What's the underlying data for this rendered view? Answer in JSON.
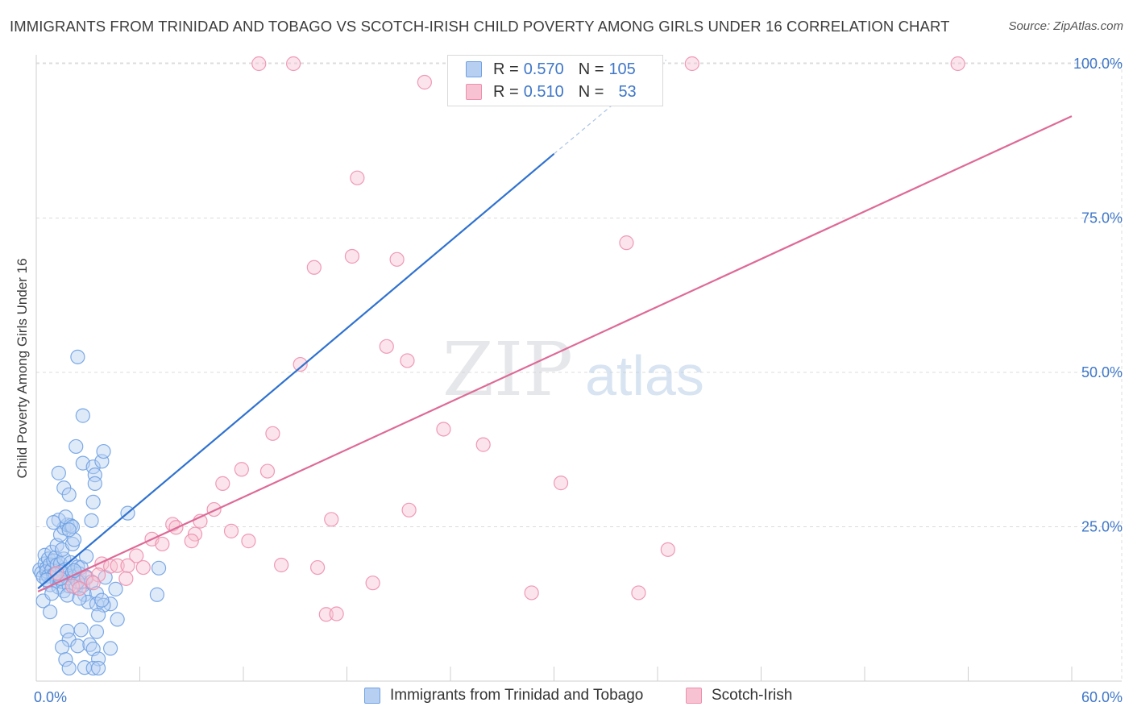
{
  "title": "IMMIGRANTS FROM TRINIDAD AND TOBAGO VS SCOTCH-IRISH CHILD POVERTY AMONG GIRLS UNDER 16 CORRELATION CHART",
  "source": "Source: ZipAtlas.com",
  "watermark": {
    "part1": "ZIP",
    "part2": "atlas"
  },
  "legend": {
    "r_label": "R =",
    "n_label": "N =",
    "rows": [
      {
        "r": "0.570",
        "n": "105"
      },
      {
        "r": "0.510",
        "n": "53"
      }
    ]
  },
  "chart_data": {
    "type": "scatter",
    "title": "IMMIGRANTS FROM TRINIDAD AND TOBAGO VS SCOTCH-IRISH CHILD POVERTY AMONG GIRLS UNDER 16 CORRELATION CHART",
    "xlabel": "",
    "ylabel": "Child Poverty Among Girls Under 16",
    "xlim": [
      0,
      60
    ],
    "ylim": [
      0,
      102
    ],
    "x_tick_labels": [
      "0.0%",
      "60.0%"
    ],
    "y_tick_values": [
      25,
      50,
      75,
      100
    ],
    "y_tick_labels": [
      "25.0%",
      "50.0%",
      "75.0%",
      "100.0%"
    ],
    "grid": true,
    "legend_position": "top-center",
    "series": [
      {
        "name": "Immigrants from Trinidad and Tobago",
        "color": "#6fa1e3",
        "fill": "#b7d0f2",
        "line_color": "#2f72d0",
        "r": 0.57,
        "n": 105,
        "trend": {
          "x0": 0.1,
          "y0": 15.0,
          "x1": 30.0,
          "y1": 85.4,
          "dash_to_x": 36.5,
          "dash_to_y": 100.6
        },
        "points": [
          [
            0.2,
            18.0
          ],
          [
            0.3,
            17.5
          ],
          [
            0.4,
            16.9
          ],
          [
            0.5,
            20.4
          ],
          [
            0.5,
            19.0
          ],
          [
            0.6,
            18.3
          ],
          [
            0.6,
            17.8
          ],
          [
            0.7,
            19.8
          ],
          [
            0.7,
            17.0
          ],
          [
            0.8,
            18.9
          ],
          [
            0.8,
            15.6
          ],
          [
            0.9,
            20.9
          ],
          [
            0.9,
            18.0
          ],
          [
            1.0,
            19.5
          ],
          [
            1.0,
            17.2
          ],
          [
            1.1,
            20.0
          ],
          [
            1.2,
            16.2
          ],
          [
            1.2,
            18.8
          ],
          [
            1.3,
            15.2
          ],
          [
            1.4,
            19.0
          ],
          [
            1.5,
            17.8
          ],
          [
            1.5,
            16.1
          ],
          [
            1.6,
            19.8
          ],
          [
            1.6,
            14.6
          ],
          [
            1.7,
            18.1
          ],
          [
            1.8,
            16.7
          ],
          [
            1.9,
            15.4
          ],
          [
            2.0,
            19.2
          ],
          [
            2.1,
            17.6
          ],
          [
            2.2,
            16.9
          ],
          [
            2.3,
            15.1
          ],
          [
            2.4,
            18.5
          ],
          [
            2.5,
            17.4
          ],
          [
            2.6,
            16.0
          ],
          [
            2.7,
            15.5
          ],
          [
            2.8,
            14.0
          ],
          [
            0.4,
            13.0
          ],
          [
            0.8,
            11.2
          ],
          [
            1.2,
            22.0
          ],
          [
            1.4,
            23.7
          ],
          [
            1.6,
            24.8
          ],
          [
            1.5,
            21.3
          ],
          [
            1.8,
            25.3
          ],
          [
            2.0,
            25.2
          ],
          [
            2.1,
            22.2
          ],
          [
            2.2,
            22.9
          ],
          [
            1.3,
            26.1
          ],
          [
            1.0,
            25.7
          ],
          [
            1.7,
            26.6
          ],
          [
            2.1,
            25.0
          ],
          [
            1.9,
            24.5
          ],
          [
            1.3,
            33.7
          ],
          [
            1.6,
            31.3
          ],
          [
            1.9,
            30.2
          ],
          [
            2.3,
            38.0
          ],
          [
            2.7,
            35.3
          ],
          [
            3.3,
            34.7
          ],
          [
            3.4,
            33.4
          ],
          [
            3.4,
            32.0
          ],
          [
            3.8,
            35.6
          ],
          [
            3.9,
            37.2
          ],
          [
            2.7,
            43.0
          ],
          [
            2.4,
            52.5
          ],
          [
            3.3,
            29.0
          ],
          [
            3.2,
            26.0
          ],
          [
            5.3,
            27.2
          ],
          [
            2.6,
            18.4
          ],
          [
            2.9,
            16.9
          ],
          [
            3.2,
            16.1
          ],
          [
            3.5,
            14.2
          ],
          [
            4.0,
            16.8
          ],
          [
            4.3,
            12.5
          ],
          [
            4.6,
            14.9
          ],
          [
            3.0,
            12.8
          ],
          [
            3.5,
            12.5
          ],
          [
            3.9,
            12.3
          ],
          [
            3.6,
            10.7
          ],
          [
            4.7,
            10.0
          ],
          [
            1.8,
            8.1
          ],
          [
            2.6,
            8.3
          ],
          [
            3.5,
            8.0
          ],
          [
            1.9,
            6.7
          ],
          [
            2.4,
            5.7
          ],
          [
            3.1,
            5.9
          ],
          [
            4.3,
            5.3
          ],
          [
            3.3,
            5.2
          ],
          [
            1.5,
            5.5
          ],
          [
            1.7,
            3.5
          ],
          [
            3.6,
            3.6
          ],
          [
            1.9,
            2.1
          ],
          [
            2.8,
            2.2
          ],
          [
            3.3,
            2.1
          ],
          [
            3.6,
            2.1
          ],
          [
            7.0,
            14.0
          ],
          [
            7.1,
            18.3
          ],
          [
            2.4,
            16.1
          ],
          [
            1.8,
            13.9
          ],
          [
            0.9,
            14.2
          ],
          [
            1.1,
            17.3
          ],
          [
            2.2,
            17.9
          ],
          [
            2.5,
            13.4
          ],
          [
            0.6,
            16.4
          ],
          [
            1.4,
            16.6
          ],
          [
            2.9,
            20.2
          ],
          [
            3.8,
            13.1
          ]
        ]
      },
      {
        "name": "Scotch-Irish",
        "color": "#ee8fae",
        "fill": "#f7c3d3",
        "line_color": "#de6a96",
        "r": 0.51,
        "n": 53,
        "trend": {
          "x0": 0.1,
          "y0": 14.5,
          "x1": 60.0,
          "y1": 91.5
        },
        "points": [
          [
            12.9,
            100.0
          ],
          [
            14.9,
            100.0
          ],
          [
            22.5,
            97.0
          ],
          [
            38.0,
            100.0
          ],
          [
            53.4,
            100.0
          ],
          [
            18.6,
            81.5
          ],
          [
            16.1,
            67.0
          ],
          [
            18.3,
            68.8
          ],
          [
            20.9,
            68.3
          ],
          [
            34.2,
            71.0
          ],
          [
            20.3,
            54.2
          ],
          [
            21.5,
            51.9
          ],
          [
            15.3,
            51.3
          ],
          [
            13.7,
            40.1
          ],
          [
            23.6,
            40.8
          ],
          [
            25.9,
            38.3
          ],
          [
            11.9,
            34.3
          ],
          [
            13.4,
            34.0
          ],
          [
            10.8,
            32.0
          ],
          [
            30.4,
            32.1
          ],
          [
            10.3,
            27.8
          ],
          [
            21.6,
            27.7
          ],
          [
            17.1,
            26.2
          ],
          [
            9.5,
            25.9
          ],
          [
            7.9,
            25.4
          ],
          [
            8.1,
            24.9
          ],
          [
            9.2,
            23.8
          ],
          [
            11.3,
            24.3
          ],
          [
            12.3,
            22.7
          ],
          [
            6.7,
            23.0
          ],
          [
            7.3,
            22.2
          ],
          [
            9.0,
            22.7
          ],
          [
            36.6,
            21.3
          ],
          [
            5.8,
            20.3
          ],
          [
            3.8,
            19.0
          ],
          [
            4.3,
            18.6
          ],
          [
            4.7,
            18.7
          ],
          [
            5.3,
            18.7
          ],
          [
            6.2,
            18.4
          ],
          [
            14.2,
            18.8
          ],
          [
            16.3,
            18.4
          ],
          [
            2.9,
            16.7
          ],
          [
            3.6,
            17.2
          ],
          [
            5.2,
            16.6
          ],
          [
            19.5,
            15.9
          ],
          [
            2.1,
            15.4
          ],
          [
            3.3,
            15.9
          ],
          [
            28.7,
            14.3
          ],
          [
            34.9,
            14.3
          ],
          [
            16.8,
            10.8
          ],
          [
            17.4,
            10.9
          ],
          [
            1.2,
            17.5
          ],
          [
            2.5,
            15.0
          ]
        ]
      }
    ]
  }
}
